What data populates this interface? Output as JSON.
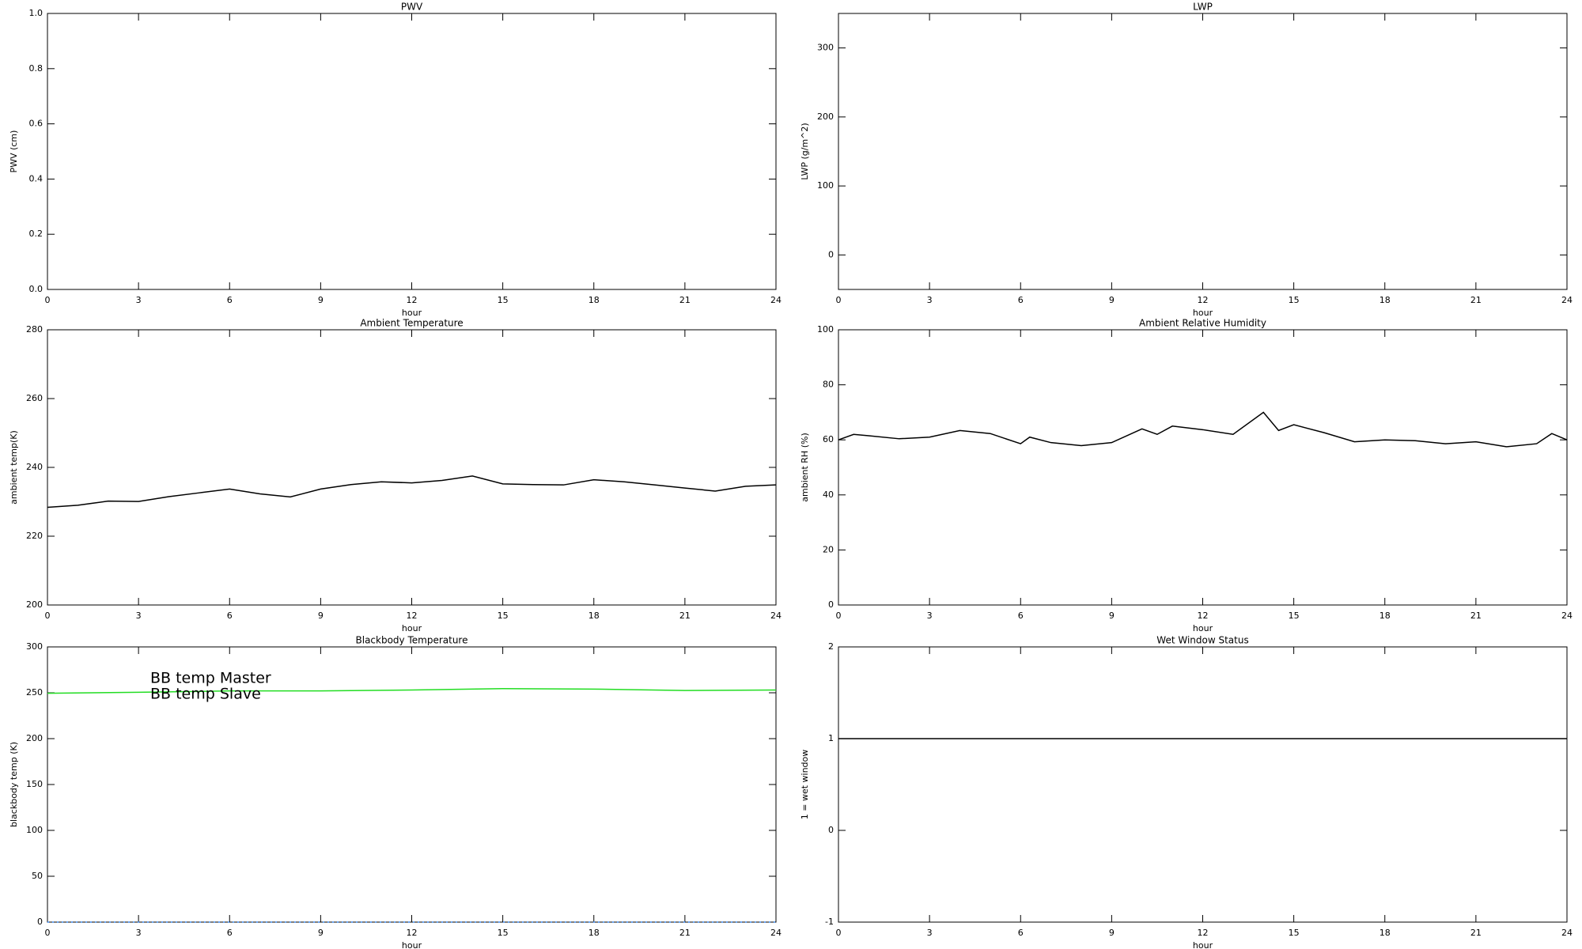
{
  "chart_data": [
    {
      "type": "line",
      "title": "PWV",
      "ylabel": "PWV (cm)",
      "xlabel": "hour",
      "xlim": [
        0,
        24
      ],
      "xticks": [
        0,
        3,
        6,
        9,
        12,
        15,
        18,
        21,
        24
      ],
      "ylim": [
        0,
        1
      ],
      "yticks": [
        {
          "value": 0,
          "label": "0.0"
        },
        0.2,
        0.4,
        0.6,
        0.8,
        {
          "value": 1,
          "label": "1.0"
        }
      ],
      "x": [],
      "series": []
    },
    {
      "type": "line",
      "title": "LWP",
      "ylabel": "LWP (g/m^2)",
      "xlabel": "hour",
      "xlim": [
        0,
        24
      ],
      "xticks": [
        0,
        3,
        6,
        9,
        12,
        15,
        18,
        21,
        24
      ],
      "ylim": [
        -50,
        350
      ],
      "yticks": [
        0,
        100,
        200,
        300
      ],
      "x": [],
      "series": []
    },
    {
      "type": "line",
      "title": "Ambient Temperature",
      "ylabel": "ambient temp(K)",
      "xlabel": "hour",
      "xlim": [
        0,
        24
      ],
      "xticks": [
        0,
        3,
        6,
        9,
        12,
        15,
        18,
        21,
        24
      ],
      "ylim": [
        200,
        280
      ],
      "yticks": [
        200,
        220,
        240,
        260,
        280
      ],
      "x": [
        0,
        1,
        2,
        3,
        4,
        5,
        6,
        7,
        8,
        9,
        10,
        11,
        12,
        13,
        14,
        15,
        16,
        17,
        18,
        19,
        20,
        21,
        22,
        23,
        24
      ],
      "series": [
        {
          "color": "#000000",
          "values": [
            228.4,
            229.0,
            230.2,
            230.1,
            231.5,
            232.6,
            233.7,
            232.3,
            231.4,
            233.7,
            235.0,
            235.8,
            235.5,
            236.2,
            237.5,
            235.2,
            235.0,
            234.9,
            236.4,
            235.8,
            234.9,
            234.0,
            233.1,
            234.5,
            234.9
          ]
        }
      ]
    },
    {
      "type": "line",
      "title": "Ambient Relative Humidity",
      "ylabel": "ambient RH (%)",
      "xlabel": "hour",
      "xlim": [
        0,
        24
      ],
      "xticks": [
        0,
        3,
        6,
        9,
        12,
        15,
        18,
        21,
        24
      ],
      "ylim": [
        0,
        100
      ],
      "yticks": [
        0,
        20,
        40,
        60,
        80,
        100
      ],
      "x": [
        0,
        0.5,
        1,
        2,
        3,
        4,
        5,
        6,
        6.3,
        7,
        8,
        9,
        10,
        10.5,
        11,
        12,
        13,
        14,
        14.5,
        15,
        16,
        17,
        18,
        19,
        20,
        21,
        22,
        23,
        23.5,
        24
      ],
      "series": [
        {
          "color": "#000000",
          "values": [
            60,
            62,
            61.5,
            60.4,
            61,
            63.4,
            62.3,
            58.6,
            61,
            59,
            57.9,
            59,
            64,
            62,
            65,
            63.7,
            62,
            70,
            63.4,
            65.5,
            62.6,
            59.3,
            60,
            59.7,
            58.6,
            59.3,
            57.5,
            58.6,
            62.3,
            60
          ]
        }
      ]
    },
    {
      "type": "line",
      "title": "Blackbody Temperature",
      "ylabel": "blackbody temp (K)",
      "xlabel": "hour",
      "xlim": [
        0,
        24
      ],
      "xticks": [
        0,
        3,
        6,
        9,
        12,
        15,
        18,
        21,
        24
      ],
      "ylim": [
        0,
        300
      ],
      "yticks": [
        0,
        50,
        100,
        150,
        200,
        250,
        300
      ],
      "legend": "upper left",
      "x": [
        0,
        3,
        6,
        9,
        12,
        15,
        18,
        21,
        24
      ],
      "series": [
        {
          "name": "BB temp Master",
          "color": "#3f8fff",
          "dash": "dotted",
          "values": [
            0,
            0,
            0,
            0,
            0,
            0,
            0,
            0,
            0
          ]
        },
        {
          "name": "BB temp Slave",
          "color": "#22dd22",
          "values": [
            249.5,
            250.5,
            252,
            252,
            253,
            254.5,
            254,
            252.5,
            253
          ]
        }
      ]
    },
    {
      "type": "line",
      "title": "Wet Window Status",
      "ylabel": "1 = wet window",
      "xlabel": "hour",
      "xlim": [
        0,
        24
      ],
      "xticks": [
        0,
        3,
        6,
        9,
        12,
        15,
        18,
        21,
        24
      ],
      "ylim": [
        -1,
        2
      ],
      "yticks": [
        -1,
        0,
        1,
        2
      ],
      "x": [
        0,
        24
      ],
      "series": [
        {
          "color": "#000000",
          "values": [
            1,
            1
          ]
        }
      ]
    }
  ]
}
